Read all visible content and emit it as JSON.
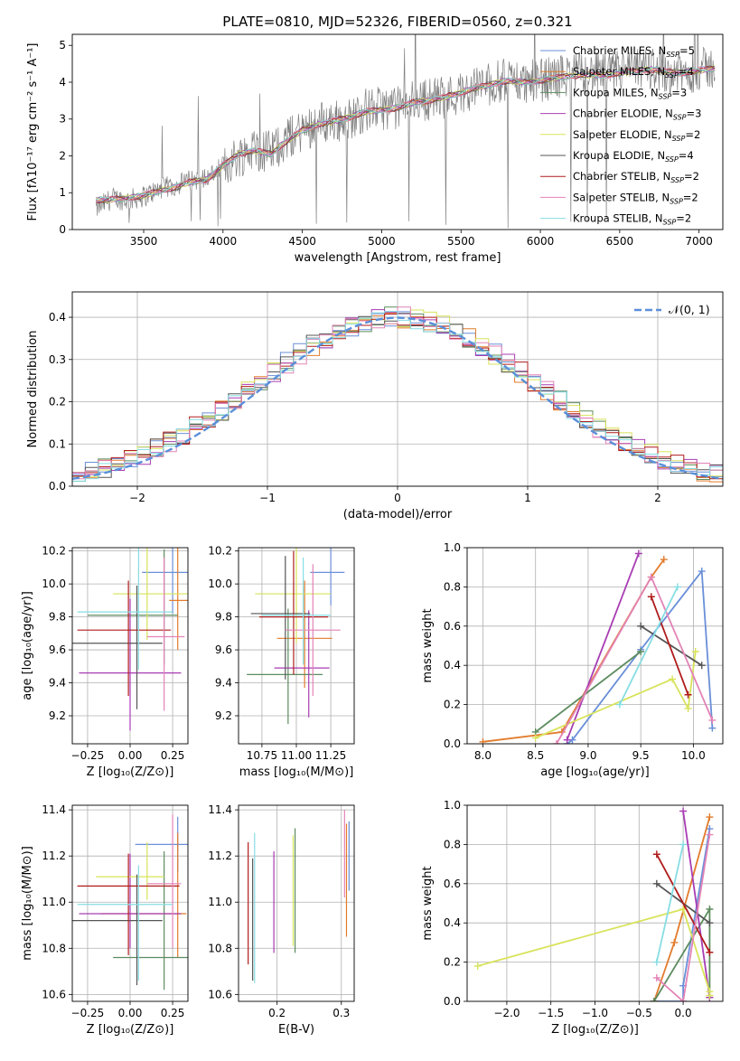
{
  "figure_title": "PLATE=0810, MJD=52326, FIBERID=0560, z=0.321",
  "series_colors": [
    "#6a8fd8",
    "#e27b2c",
    "#5d8c5f",
    "#a83db3",
    "#d8e35a",
    "#555555",
    "#b01c1c",
    "#e383b6",
    "#86dde3"
  ],
  "chart_data": [
    {
      "type": "line",
      "panel": "spectrum",
      "title": "PLATE=0810, MJD=52326, FIBERID=0560, z=0.321",
      "xlabel": "wavelength [Angstrom, rest frame]",
      "ylabel": "Flux [fλ10⁻¹⁷ erg cm⁻² s⁻¹ A⁻¹]",
      "xlim": [
        3050,
        7150
      ],
      "ylim": [
        0,
        5.3
      ],
      "xticks": [
        3500,
        4000,
        4500,
        5000,
        5500,
        6000,
        6500,
        7000
      ],
      "yticks": [
        0,
        1,
        2,
        3,
        4,
        5
      ],
      "data_color": "#7f7f7f",
      "data_points": [
        [
          3200,
          0.55
        ],
        [
          3300,
          0.85
        ],
        [
          3400,
          0.8
        ],
        [
          3500,
          0.9
        ],
        [
          3600,
          1.1
        ],
        [
          3700,
          1.2
        ],
        [
          3800,
          1.35
        ],
        [
          3900,
          1.4
        ],
        [
          4000,
          1.7
        ],
        [
          4100,
          2.0
        ],
        [
          4200,
          2.2
        ],
        [
          4300,
          2.1
        ],
        [
          4400,
          2.45
        ],
        [
          4500,
          2.7
        ],
        [
          4600,
          2.9
        ],
        [
          4700,
          2.95
        ],
        [
          4800,
          3.0
        ],
        [
          4900,
          3.25
        ],
        [
          5000,
          3.3
        ],
        [
          5100,
          3.3
        ],
        [
          5200,
          3.5
        ],
        [
          5300,
          3.55
        ],
        [
          5400,
          3.6
        ],
        [
          5500,
          3.7
        ],
        [
          5600,
          3.9
        ],
        [
          5700,
          3.95
        ],
        [
          5800,
          4.1
        ],
        [
          5900,
          4.0
        ],
        [
          6000,
          4.05
        ],
        [
          6100,
          4.15
        ],
        [
          6200,
          4.2
        ],
        [
          6300,
          4.25
        ],
        [
          6400,
          4.2
        ],
        [
          6500,
          4.3
        ],
        [
          6600,
          4.35
        ],
        [
          6700,
          4.4
        ],
        [
          6800,
          4.3
        ],
        [
          6900,
          4.25
        ],
        [
          7000,
          4.35
        ],
        [
          7100,
          4.4
        ]
      ],
      "model_points": [
        [
          3200,
          0.8
        ],
        [
          3300,
          0.82
        ],
        [
          3400,
          0.85
        ],
        [
          3500,
          0.92
        ],
        [
          3600,
          1.05
        ],
        [
          3700,
          1.15
        ],
        [
          3800,
          1.3
        ],
        [
          3900,
          1.35
        ],
        [
          4000,
          1.75
        ],
        [
          4100,
          2.05
        ],
        [
          4200,
          2.15
        ],
        [
          4300,
          2.05
        ],
        [
          4400,
          2.4
        ],
        [
          4500,
          2.7
        ],
        [
          4600,
          2.85
        ],
        [
          4700,
          2.95
        ],
        [
          4800,
          3.05
        ],
        [
          4900,
          3.2
        ],
        [
          5000,
          3.25
        ],
        [
          5100,
          3.3
        ],
        [
          5200,
          3.45
        ],
        [
          5300,
          3.5
        ],
        [
          5400,
          3.6
        ],
        [
          5500,
          3.72
        ],
        [
          5600,
          3.85
        ],
        [
          5700,
          3.95
        ],
        [
          5800,
          4.05
        ],
        [
          5900,
          4.0
        ],
        [
          6000,
          4.05
        ],
        [
          6100,
          4.12
        ],
        [
          6200,
          4.18
        ],
        [
          6300,
          4.2
        ],
        [
          6400,
          4.18
        ],
        [
          6500,
          4.25
        ],
        [
          6600,
          4.3
        ],
        [
          6700,
          4.35
        ],
        [
          6800,
          4.28
        ],
        [
          6900,
          4.25
        ],
        [
          7000,
          4.32
        ],
        [
          7100,
          4.38
        ]
      ],
      "legend_loc": "right",
      "legend": [
        {
          "label": "Chabrier MILES, N",
          "sub": "SSP",
          "tail": "=5"
        },
        {
          "label": "Salpeter MILES, N",
          "sub": "SSP",
          "tail": "=4"
        },
        {
          "label": "Kroupa MILES, N",
          "sub": "SSP",
          "tail": "=3"
        },
        {
          "label": "Chabrier ELODIE, N",
          "sub": "SSP",
          "tail": "=3"
        },
        {
          "label": "Salpeter ELODIE, N",
          "sub": "SSP",
          "tail": "=2"
        },
        {
          "label": "Kroupa ELODIE, N",
          "sub": "SSP",
          "tail": "=4"
        },
        {
          "label": "Chabrier STELIB, N",
          "sub": "SSP",
          "tail": "=2"
        },
        {
          "label": "Salpeter STELIB, N",
          "sub": "SSP",
          "tail": "=2"
        },
        {
          "label": "Kroupa STELIB, N",
          "sub": "SSP",
          "tail": "=2"
        }
      ]
    },
    {
      "type": "histogram",
      "panel": "residuals",
      "xlabel": "(data-model)/error",
      "ylabel": "Normed distribution",
      "xlim": [
        -2.5,
        2.5
      ],
      "ylim": [
        0,
        0.46
      ],
      "xticks": [
        -2,
        -1,
        0,
        1,
        2
      ],
      "yticks": [
        0.0,
        0.1,
        0.2,
        0.3,
        0.4
      ],
      "bin_edges_start": -2.5,
      "bin_width": 0.1,
      "reference": {
        "label": "𝒩(0, 1)",
        "mean": 0,
        "sigma": 1,
        "color": "#5b8fd9"
      },
      "legend_loc": "upper right"
    },
    {
      "type": "errorbar",
      "panel": "age-vs-metallicity",
      "xlabel": "Z [log₁₀(Z/Z⊙)]",
      "ylabel": "age  [log₁₀(age/yr)]",
      "xlim": [
        -0.34,
        0.34
      ],
      "ylim": [
        9.03,
        10.22
      ],
      "xticks": [
        -0.25,
        0.0,
        0.25
      ],
      "xtick_labels": [
        "−0.25",
        "0.00",
        "0.25"
      ],
      "yticks": [
        9.2,
        9.4,
        9.6,
        9.8,
        10.0,
        10.2
      ],
      "points": [
        [
          0.25,
          10.07,
          0.18,
          0.25,
          0.25,
          0.3
        ],
        [
          0.28,
          9.9,
          0.05,
          0.2,
          0.3,
          0.35
        ],
        [
          0.2,
          9.81,
          0.45,
          0.08,
          0.3,
          0.4
        ],
        [
          0.0,
          9.46,
          0.3,
          0.3,
          0.35,
          0.45
        ],
        [
          0.1,
          9.94,
          0.2,
          0.25,
          0.28,
          0.3
        ],
        [
          0.04,
          9.64,
          0.4,
          0.15,
          0.4,
          0.35
        ],
        [
          -0.01,
          9.72,
          0.3,
          0.25,
          0.4,
          0.3
        ],
        [
          0.2,
          9.68,
          0.1,
          0.12,
          0.45,
          0.48
        ],
        [
          0.05,
          9.83,
          0.36,
          0.2,
          0.35,
          0.4
        ]
      ]
    },
    {
      "type": "errorbar",
      "panel": "age-vs-mass",
      "xlabel": "mass [log₁₀(M/M⊙)]",
      "ylabel": "",
      "xlim": [
        10.58,
        11.42
      ],
      "ylim": [
        9.03,
        10.22
      ],
      "xticks": [
        10.75,
        11.0,
        11.25
      ],
      "xtick_labels": [
        "10.75",
        "11.00",
        "11.25"
      ],
      "yticks": [
        9.2,
        9.4,
        9.6,
        9.8,
        10.0,
        10.2
      ],
      "points": [
        [
          11.25,
          10.07,
          0.15,
          0.1,
          0.2,
          0.3
        ],
        [
          11.06,
          9.67,
          0.2,
          0.2,
          0.3,
          0.35
        ],
        [
          10.94,
          9.45,
          0.3,
          0.25,
          0.3,
          0.4
        ],
        [
          11.09,
          9.49,
          0.25,
          0.15,
          0.3,
          0.35
        ],
        [
          11.0,
          9.94,
          0.3,
          0.25,
          0.3,
          0.3
        ],
        [
          10.92,
          9.82,
          0.25,
          0.18,
          0.4,
          0.35
        ],
        [
          10.98,
          9.8,
          0.25,
          0.25,
          0.35,
          0.4
        ],
        [
          11.12,
          9.72,
          0.2,
          0.2,
          0.4,
          0.4
        ],
        [
          11.05,
          9.81,
          0.3,
          0.2,
          0.3,
          0.35
        ]
      ]
    },
    {
      "type": "line",
      "panel": "mass-weight-vs-age",
      "xlabel": "age  [log₁₀(age/yr)]",
      "ylabel": "mass weight",
      "xlim": [
        7.85,
        10.28
      ],
      "ylim": [
        0,
        1.0
      ],
      "xticks": [
        8.0,
        8.5,
        9.0,
        9.5,
        10.0
      ],
      "yticks": [
        0.0,
        0.2,
        0.4,
        0.6,
        0.8,
        1.0
      ],
      "series": [
        {
          "x": [
            8.8,
            8.85,
            9.5,
            10.08,
            10.18
          ],
          "y": [
            0.0,
            0.02,
            0.48,
            0.88,
            0.08
          ]
        },
        {
          "x": [
            8.0,
            8.75,
            9.6,
            9.72
          ],
          "y": [
            0.01,
            0.06,
            0.85,
            0.94
          ]
        },
        {
          "x": [
            8.5,
            9.5
          ],
          "y": [
            0.06,
            0.47
          ]
        },
        {
          "x": [
            8.8,
            9.48
          ],
          "y": [
            0.02,
            0.97
          ]
        },
        {
          "x": [
            8.5,
            9.8,
            9.95,
            10.02
          ],
          "y": [
            0.03,
            0.33,
            0.18,
            0.47
          ]
        },
        {
          "x": [
            9.5,
            10.08
          ],
          "y": [
            0.6,
            0.4
          ]
        },
        {
          "x": [
            9.6,
            9.95
          ],
          "y": [
            0.75,
            0.25
          ]
        },
        {
          "x": [
            8.7,
            9.6,
            10.18
          ],
          "y": [
            0.0,
            0.85,
            0.12
          ]
        },
        {
          "x": [
            9.3,
            9.85
          ],
          "y": [
            0.2,
            0.8
          ]
        }
      ]
    },
    {
      "type": "errorbar",
      "panel": "mass-vs-metallicity",
      "xlabel": "Z [log₁₀(Z/Z⊙)]",
      "ylabel": "mass [log₁₀(M/M⊙)]",
      "xlim": [
        -0.34,
        0.34
      ],
      "ylim": [
        10.57,
        11.42
      ],
      "xticks": [
        -0.25,
        0.0,
        0.25
      ],
      "xtick_labels": [
        "−0.25",
        "0.00",
        "0.25"
      ],
      "yticks": [
        10.6,
        10.8,
        11.0,
        11.2,
        11.4
      ],
      "points": [
        [
          0.28,
          11.25,
          0.25,
          0.1,
          0.12,
          0.12
        ],
        [
          0.28,
          10.95,
          0.45,
          0.05,
          0.19,
          0.35
        ],
        [
          0.2,
          10.76,
          0.3,
          0.15,
          0.14,
          0.46
        ],
        [
          0.0,
          10.95,
          0.3,
          0.3,
          0.15,
          0.26
        ],
        [
          0.1,
          11.11,
          0.3,
          0.1,
          0.1,
          0.15
        ],
        [
          0.04,
          10.92,
          0.4,
          0.15,
          0.28,
          0.2
        ],
        [
          -0.01,
          11.07,
          0.3,
          0.3,
          0.3,
          0.14
        ],
        [
          0.25,
          11.08,
          0.15,
          0.05,
          0.28,
          0.3
        ],
        [
          0.05,
          10.99,
          0.36,
          0.2,
          0.33,
          0.17
        ]
      ]
    },
    {
      "type": "errorbar",
      "panel": "mass-vs-ebv",
      "xlabel": "E(B-V)",
      "ylabel": "",
      "xlim": [
        0.14,
        0.32
      ],
      "ylim": [
        10.57,
        11.42
      ],
      "xticks": [
        0.2,
        0.3
      ],
      "xtick_labels": [
        "0.2",
        "0.3"
      ],
      "yticks": [
        10.6,
        10.8,
        11.0,
        11.2,
        11.4
      ],
      "points": [
        [
          0.312,
          11.2,
          0,
          0,
          0.15,
          0.15
        ],
        [
          0.308,
          11.05,
          0,
          0,
          0.2,
          0.29
        ],
        [
          0.228,
          11.0,
          0,
          0,
          0.22,
          0.32
        ],
        [
          0.195,
          10.96,
          0,
          0,
          0.18,
          0.26
        ],
        [
          0.225,
          10.98,
          0,
          0,
          0.17,
          0.31
        ],
        [
          0.162,
          10.92,
          0,
          0,
          0.26,
          0.27
        ],
        [
          0.155,
          10.98,
          0,
          0,
          0.25,
          0.28
        ],
        [
          0.305,
          11.2,
          0,
          0,
          0.18,
          0.2
        ],
        [
          0.165,
          10.95,
          0,
          0,
          0.3,
          0.35
        ]
      ]
    },
    {
      "type": "line",
      "panel": "mass-weight-vs-metallicity",
      "xlabel": "Z [log₁₀(Z/Z⊙)]",
      "ylabel": "mass weight",
      "xlim": [
        -2.45,
        0.45
      ],
      "ylim": [
        0,
        1.0
      ],
      "xticks": [
        -2.0,
        -1.5,
        -1.0,
        -0.5,
        0.0
      ],
      "xtick_labels": [
        "−2.0",
        "−1.5",
        "−1.0",
        "−0.5",
        "0.0"
      ],
      "yticks": [
        0.0,
        0.2,
        0.4,
        0.6,
        0.8,
        1.0
      ],
      "series": [
        {
          "x": [
            -0.33,
            0.0,
            0.0,
            0.3
          ],
          "y": [
            0.0,
            0.0,
            0.08,
            0.88
          ]
        },
        {
          "x": [
            -0.33,
            -0.1,
            0.3
          ],
          "y": [
            0.0,
            0.3,
            0.94
          ]
        },
        {
          "x": [
            -0.33,
            0.3,
            0.3
          ],
          "y": [
            0.0,
            0.47,
            0.02
          ]
        },
        {
          "x": [
            0.0,
            0.3
          ],
          "y": [
            0.97,
            0.02
          ]
        },
        {
          "x": [
            -2.33,
            0.0,
            0.3,
            0.3
          ],
          "y": [
            0.18,
            0.47,
            0.05,
            0.03
          ]
        },
        {
          "x": [
            -0.3,
            0.3
          ],
          "y": [
            0.6,
            0.4
          ]
        },
        {
          "x": [
            -0.3,
            0.3
          ],
          "y": [
            0.75,
            0.25
          ]
        },
        {
          "x": [
            -0.3,
            0.0,
            0.3
          ],
          "y": [
            0.12,
            0.0,
            0.85
          ]
        },
        {
          "x": [
            -0.3,
            0.0
          ],
          "y": [
            0.2,
            0.8
          ]
        }
      ]
    }
  ]
}
